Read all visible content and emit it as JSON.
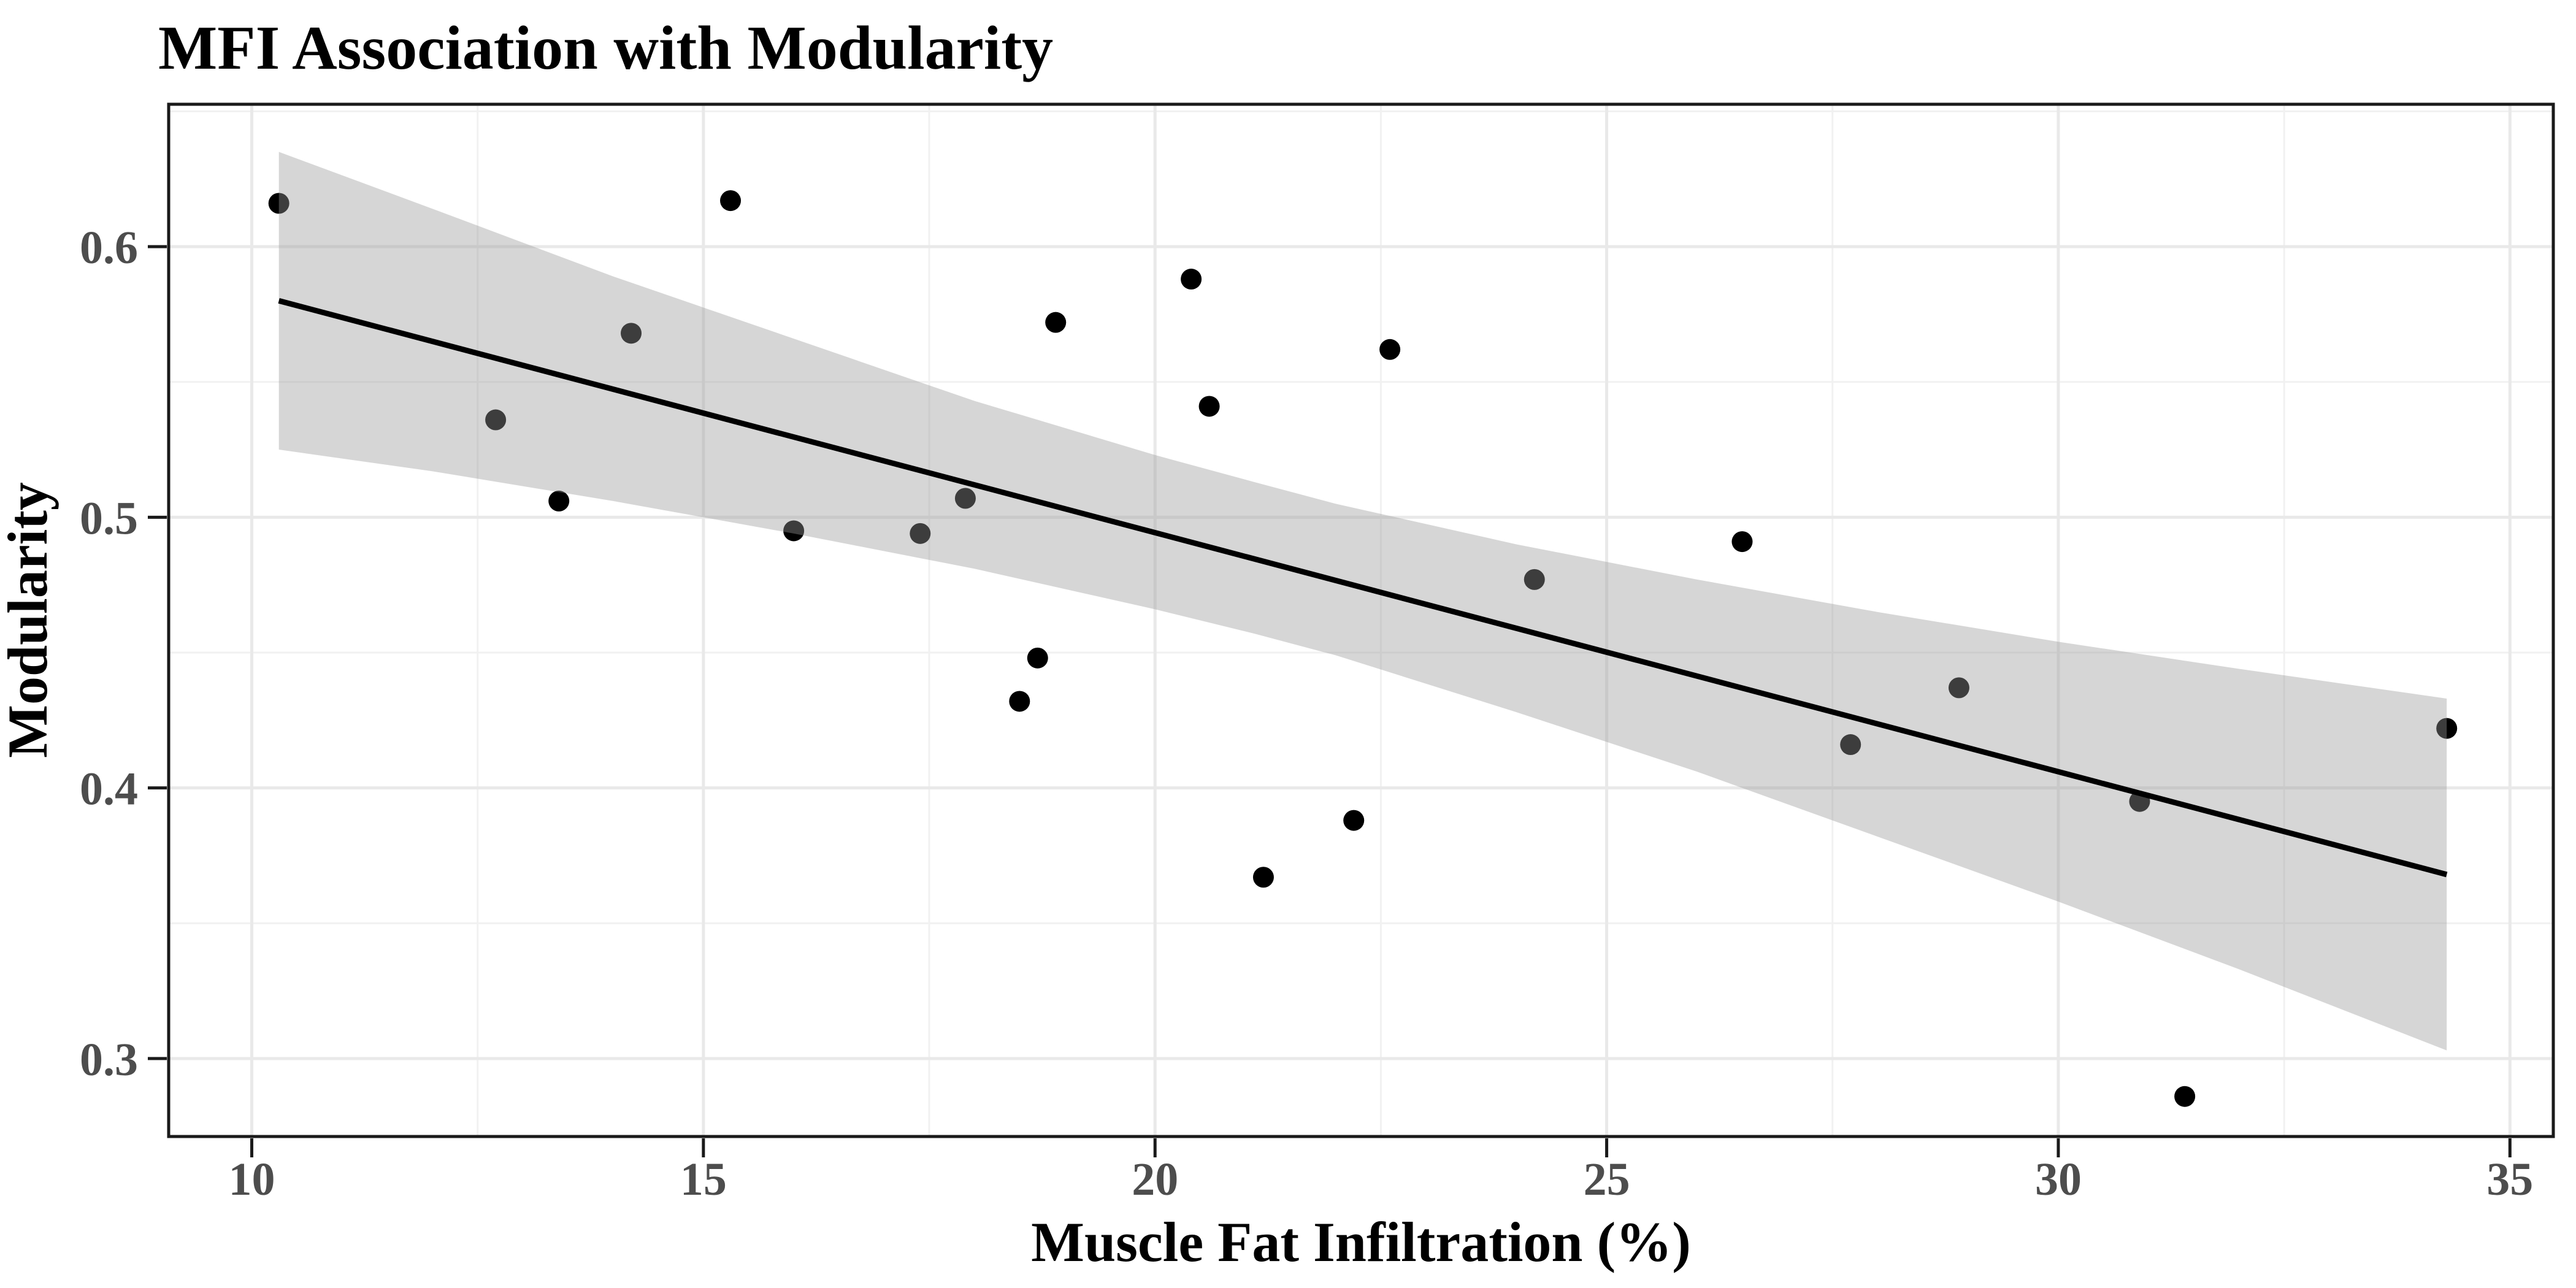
{
  "title": "MFI Association with Modularity",
  "chart_data": {
    "type": "scatter",
    "title": "MFI Association with Modularity",
    "xlabel": "Muscle Fat Infiltration (%)",
    "ylabel": "Modularity",
    "xlim": [
      9.08,
      35.48
    ],
    "ylim": [
      0.2712,
      0.6526
    ],
    "x_ticks": [
      10,
      15,
      20,
      25,
      30,
      35
    ],
    "x_tick_labels": [
      "10",
      "15",
      "20",
      "25",
      "30",
      "35"
    ],
    "y_ticks": [
      0.3,
      0.4,
      0.5,
      0.6
    ],
    "y_tick_labels": [
      "0.3",
      "0.4",
      "0.5",
      "0.6"
    ],
    "x_minor_gridlines": [
      12.5,
      17.5,
      22.5,
      27.5,
      32.5
    ],
    "y_minor_gridlines": [
      0.35,
      0.45,
      0.55,
      0.65
    ],
    "grid": true,
    "legend": false,
    "points": [
      [
        10.3,
        0.616
      ],
      [
        12.7,
        0.536
      ],
      [
        13.4,
        0.506
      ],
      [
        14.2,
        0.568
      ],
      [
        15.3,
        0.617
      ],
      [
        16.0,
        0.495
      ],
      [
        17.4,
        0.494
      ],
      [
        17.9,
        0.507
      ],
      [
        18.5,
        0.432
      ],
      [
        18.7,
        0.448
      ],
      [
        18.9,
        0.572
      ],
      [
        20.4,
        0.588
      ],
      [
        20.6,
        0.541
      ],
      [
        21.2,
        0.367
      ],
      [
        22.2,
        0.388
      ],
      [
        22.6,
        0.562
      ],
      [
        24.2,
        0.477
      ],
      [
        26.5,
        0.491
      ],
      [
        27.7,
        0.416
      ],
      [
        28.9,
        0.437
      ],
      [
        30.9,
        0.395
      ],
      [
        31.4,
        0.286
      ],
      [
        34.3,
        0.422
      ]
    ],
    "trend_line": {
      "x1": 10.3,
      "y1": 0.58,
      "x2": 34.3,
      "y2": 0.368
    },
    "confidence_band": [
      [
        10.3,
        0.525,
        0.635
      ],
      [
        12.0,
        0.517,
        0.614
      ],
      [
        14.0,
        0.506,
        0.589
      ],
      [
        16.0,
        0.494,
        0.566
      ],
      [
        18.0,
        0.481,
        0.543
      ],
      [
        20.0,
        0.466,
        0.523
      ],
      [
        21.1,
        0.457,
        0.513
      ],
      [
        22.0,
        0.449,
        0.505
      ],
      [
        24.0,
        0.428,
        0.49
      ],
      [
        26.0,
        0.406,
        0.477
      ],
      [
        28.0,
        0.382,
        0.465
      ],
      [
        30.0,
        0.358,
        0.454
      ],
      [
        32.0,
        0.333,
        0.444
      ],
      [
        34.3,
        0.303,
        0.433
      ]
    ],
    "style": {
      "point_color": "#000000",
      "point_radius": 17,
      "line_color": "#000000",
      "line_width": 9,
      "band_color": "#999999",
      "band_opacity": 0.4,
      "major_grid_color": "#e9e9e9",
      "minor_grid_color": "#f1f1f1",
      "panel_border_color": "#1a1a1a",
      "tick_color": "#1a1a1a",
      "tick_label_color": "#4d4d4d",
      "title_color": "#000000",
      "background_color": "#ffffff"
    }
  }
}
